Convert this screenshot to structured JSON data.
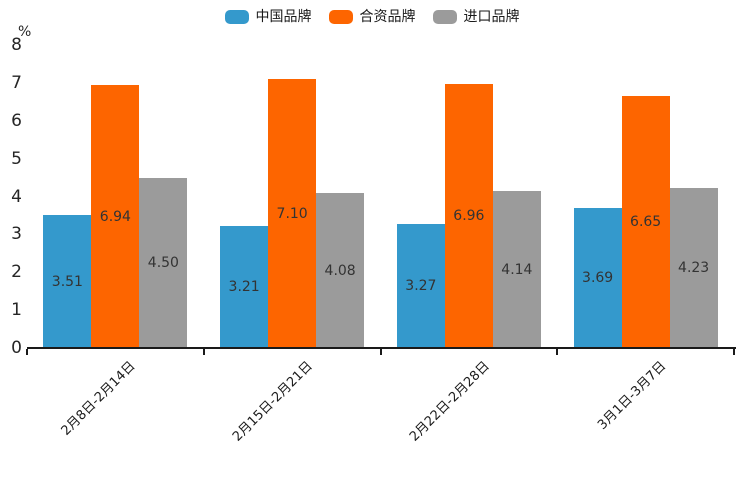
{
  "chart_data": {
    "type": "bar",
    "title": "",
    "xlabel": "",
    "ylabel": "%",
    "ylim": [
      0,
      8
    ],
    "yticks": [
      0,
      1,
      2,
      3,
      4,
      5,
      6,
      7,
      8
    ],
    "grid": false,
    "legend_position": "top-center",
    "categories": [
      "2月8日-2月14日",
      "2月15日-2月21日",
      "2月22日-2月28日",
      "3月1日-3月7日"
    ],
    "series": [
      {
        "name": "中国品牌",
        "slug": "china-brand",
        "color": "#3499CC",
        "values": [
          3.51,
          3.21,
          3.27,
          3.69
        ]
      },
      {
        "name": "合资品牌",
        "slug": "joint-venture-brand",
        "color": "#FD6500",
        "values": [
          6.94,
          7.1,
          6.96,
          6.65
        ]
      },
      {
        "name": "进口品牌",
        "slug": "import-brand",
        "color": "#9B9B9B",
        "values": [
          4.5,
          4.08,
          4.14,
          4.23
        ]
      }
    ],
    "value_label_color": "#333333",
    "axis_color": "#1a1a1a",
    "background_color": "#ffffff"
  }
}
